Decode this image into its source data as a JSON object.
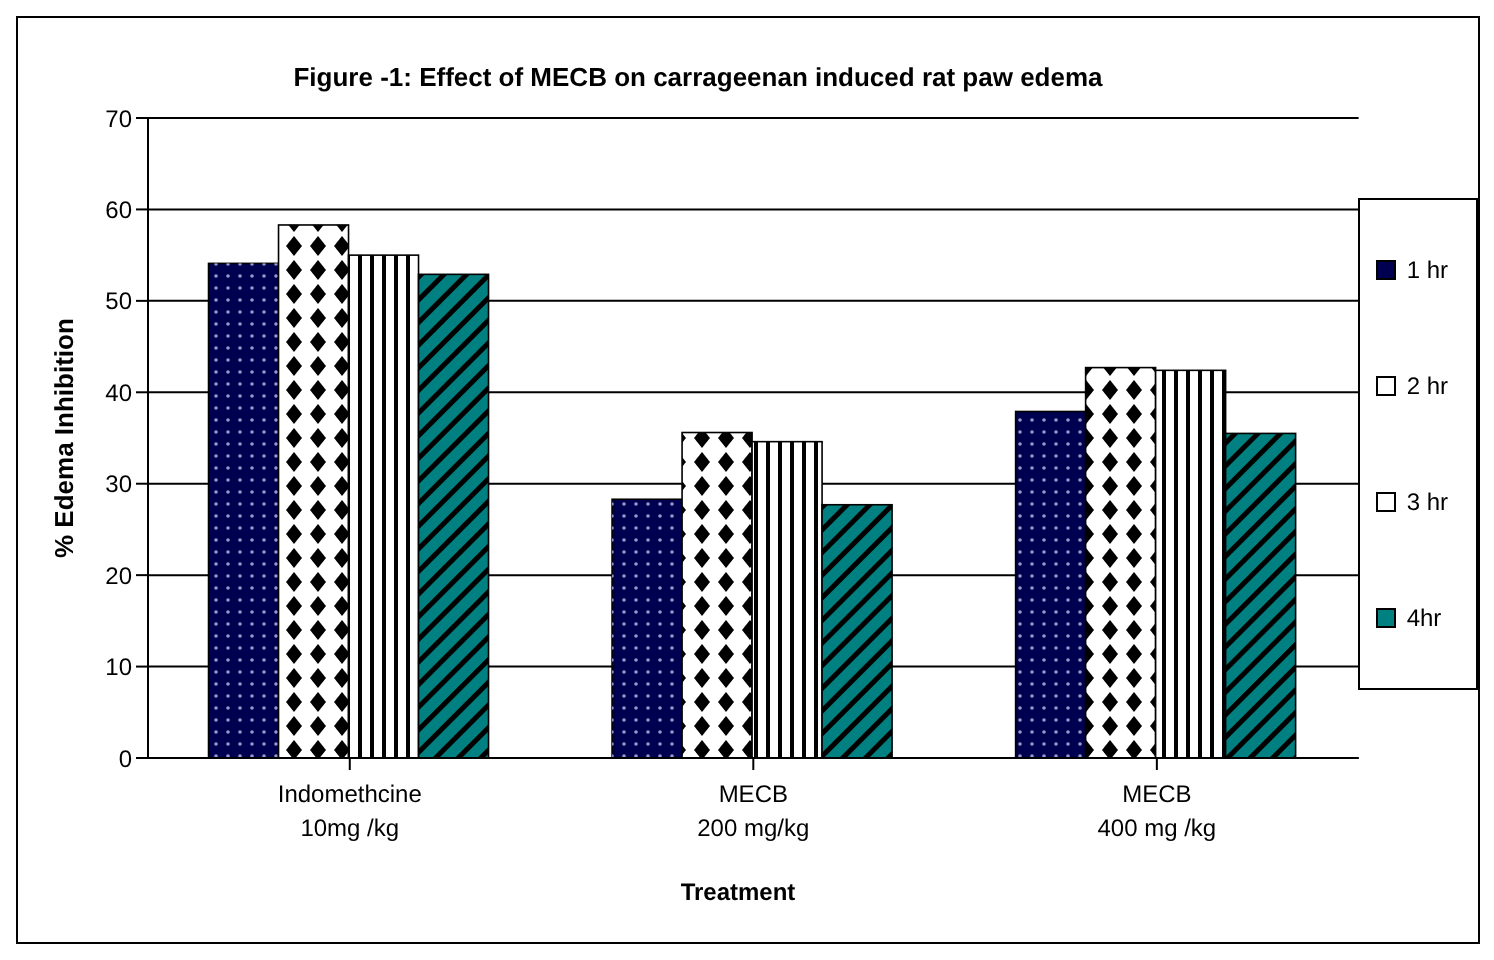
{
  "chart_data": {
    "type": "bar",
    "title": "Figure -1:   Effect of MECB on carrageenan induced rat paw edema",
    "xlabel": "Treatment",
    "ylabel": "% Edema Inhibition",
    "categories": [
      "Indomethcine\n10mg /kg",
      "MECB\n200 mg/kg",
      "MECB\n400 mg /kg"
    ],
    "series": [
      {
        "name": "1 hr",
        "color": "#000050",
        "values": [
          54.1,
          28.3,
          37.9
        ]
      },
      {
        "name": "2 hr",
        "color": "#ffffff",
        "values": [
          58.3,
          35.6,
          42.7
        ]
      },
      {
        "name": "3 hr",
        "color": "#ffffff",
        "values": [
          55.0,
          34.6,
          42.4
        ]
      },
      {
        "name": "4hr",
        "color": "#008080",
        "values": [
          52.9,
          27.7,
          35.5
        ]
      }
    ],
    "ylim": [
      0,
      70
    ],
    "yticks": [
      0,
      10,
      20,
      30,
      40,
      50,
      60,
      70
    ],
    "grid": "y",
    "legend": "right"
  }
}
